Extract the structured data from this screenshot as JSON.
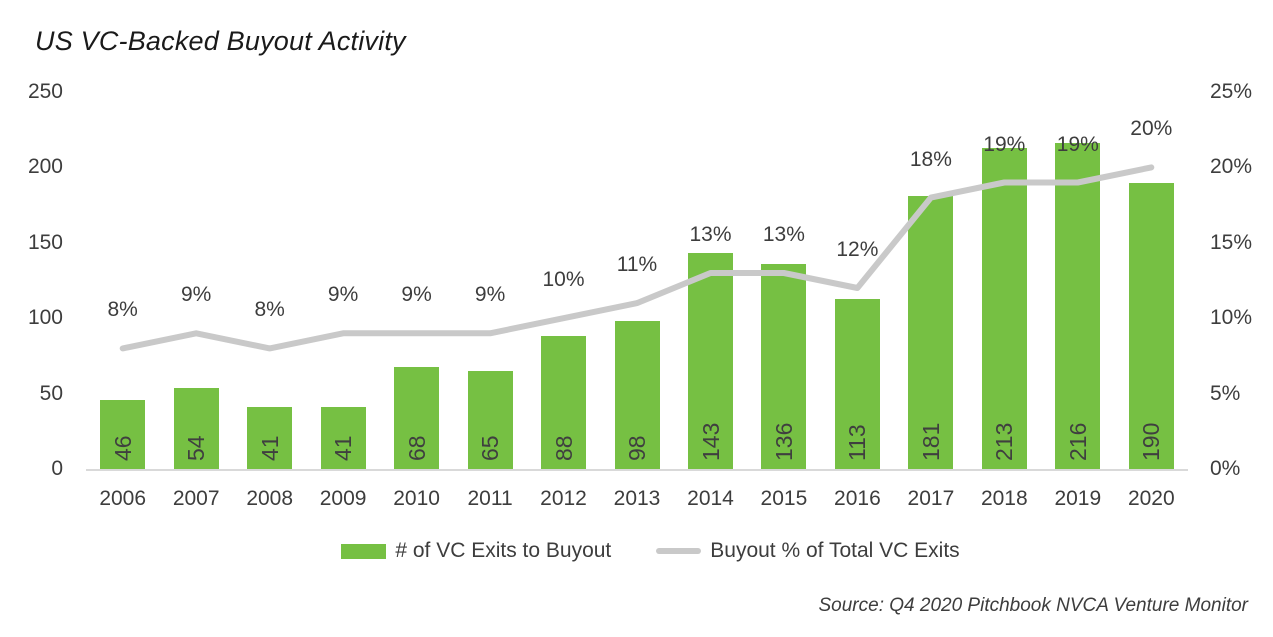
{
  "title": "US VC-Backed Buyout Activity",
  "source": "Source: Q4 2020 Pitchbook NVCA Venture Monitor",
  "colors": {
    "bar": "#76c043",
    "line": "#c9c9c9",
    "axis_line": "#d9d9d9",
    "text": "#3d3d3d"
  },
  "chart_data": {
    "type": "bar+line combo",
    "title": "US VC-Backed Buyout Activity",
    "categories": [
      "2006",
      "2007",
      "2008",
      "2009",
      "2010",
      "2011",
      "2012",
      "2013",
      "2014",
      "2015",
      "2016",
      "2017",
      "2018",
      "2019",
      "2020"
    ],
    "series": [
      {
        "name": "# of VC Exits to Buyout",
        "type": "bar",
        "axis": "left",
        "color": "#76c043",
        "values": [
          46,
          54,
          41,
          41,
          68,
          65,
          88,
          98,
          143,
          136,
          113,
          181,
          213,
          216,
          190
        ]
      },
      {
        "name": "Buyout % of Total VC Exits",
        "type": "line",
        "axis": "right",
        "color": "#c9c9c9",
        "values": [
          8,
          9,
          8,
          9,
          9,
          9,
          10,
          11,
          13,
          13,
          12,
          18,
          19,
          19,
          20
        ],
        "labels": [
          "8%",
          "9%",
          "8%",
          "9%",
          "9%",
          "9%",
          "10%",
          "11%",
          "13%",
          "13%",
          "12%",
          "18%",
          "19%",
          "19%",
          "20%"
        ]
      }
    ],
    "left_axis": {
      "min": 0,
      "max": 250,
      "ticks": [
        "250",
        "200",
        "150",
        "100",
        "50",
        "0"
      ]
    },
    "right_axis": {
      "min": 0,
      "max": 25,
      "ticks": [
        "25%",
        "20%",
        "15%",
        "10%",
        "5%",
        "0%"
      ]
    },
    "grid": false,
    "legend_position": "bottom",
    "source": "Source: Q4 2020 Pitchbook NVCA Venture Monitor"
  }
}
